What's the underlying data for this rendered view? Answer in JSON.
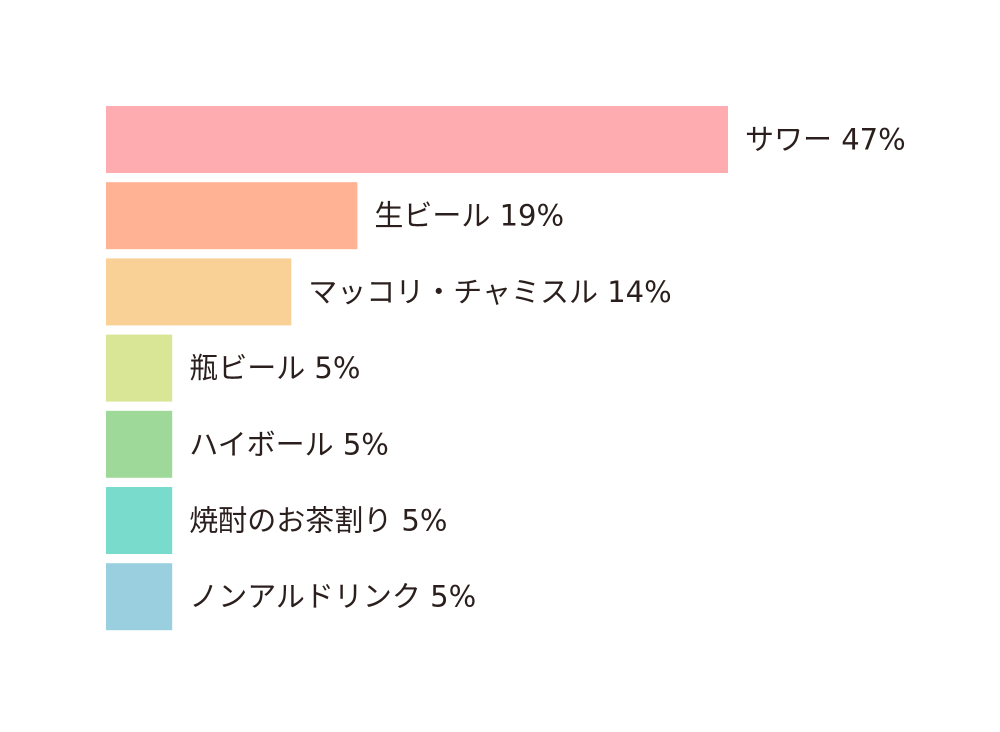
{
  "chart_data": {
    "type": "bar",
    "orientation": "horizontal",
    "unit": "%",
    "categories": [
      "サワー",
      "生ビール",
      "マッコリ・チャミスル",
      "瓶ビール",
      "ハイボール",
      "焼酎のお茶割り",
      "ノンアルドリンク"
    ],
    "values": [
      47,
      19,
      14,
      5,
      5,
      5,
      5
    ],
    "labels": [
      "サワー 47%",
      "生ビール 19%",
      "マッコリ・チャミスル 14%",
      "瓶ビール 5%",
      "ハイボール 5%",
      "焼酎のお茶割り 5%",
      "ノンアルドリンク 5%"
    ],
    "colors": [
      "#ffacb0",
      "#ffb394",
      "#f9d196",
      "#d8e695",
      "#9fd99a",
      "#78dbcb",
      "#99cfdf"
    ],
    "xlim": [
      0,
      47
    ],
    "grid": false,
    "legend": "none"
  }
}
